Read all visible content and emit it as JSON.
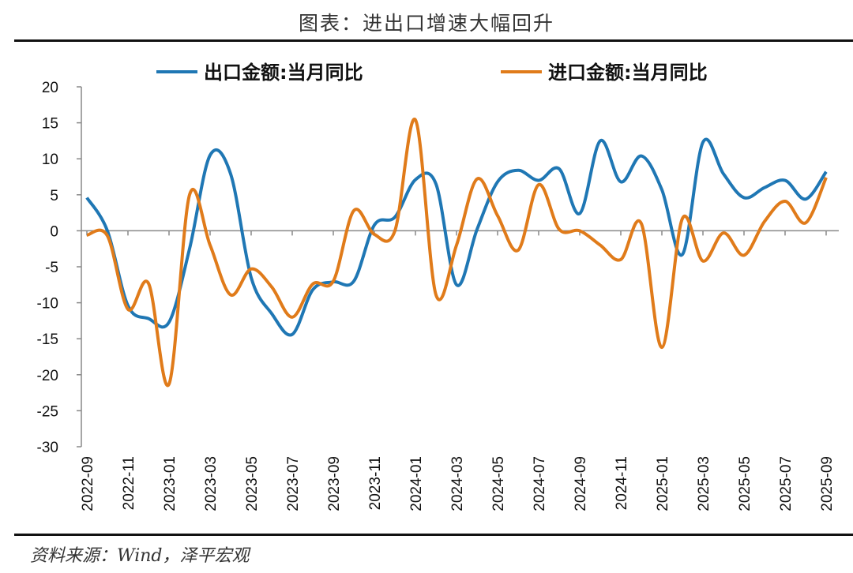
{
  "title": "图表：进出口增速大幅回升",
  "source": "资料来源：Wind，泽平宏观",
  "chart_data": {
    "type": "line",
    "title": "",
    "xlabel": "",
    "ylabel": "",
    "ylim": [
      -30,
      20
    ],
    "yticks": [
      20,
      15,
      10,
      5,
      0,
      -5,
      -10,
      -15,
      -20,
      -25,
      -30
    ],
    "grid": false,
    "legend_position": "top",
    "x": [
      "2022-09",
      "2022-10",
      "2022-11",
      "2022-12",
      "2023-01",
      "2023-02",
      "2023-03",
      "2023-04",
      "2023-05",
      "2023-06",
      "2023-07",
      "2023-08",
      "2023-09",
      "2023-10",
      "2023-11",
      "2023-12",
      "2024-01",
      "2024-02",
      "2024-03",
      "2024-04",
      "2024-05",
      "2024-06",
      "2024-07",
      "2024-08",
      "2024-09",
      "2024-10",
      "2024-11",
      "2024-12",
      "2025-01",
      "2025-02",
      "2025-03",
      "2025-04",
      "2025-05",
      "2025-06",
      "2025-07",
      "2025-08",
      "2025-09"
    ],
    "xtick_labels": [
      "2022-09",
      "2022-11",
      "2023-01",
      "2023-03",
      "2023-05",
      "2023-07",
      "2023-09",
      "2023-11",
      "2024-01",
      "2024-03",
      "2024-05",
      "2024-07",
      "2024-09",
      "2024-11",
      "2025-01",
      "2025-03",
      "2025-05",
      "2025-07",
      "2025-09"
    ],
    "series": [
      {
        "name": "出口金额:当月同比",
        "color": "#1f77b4",
        "values": [
          4.6,
          0.0,
          -10.4,
          -12.2,
          -12.7,
          -2.5,
          10.5,
          7.9,
          -6.5,
          -11.5,
          -14.4,
          -8.2,
          -7.1,
          -7.0,
          0.8,
          1.9,
          7.1,
          6.5,
          -7.5,
          0.2,
          6.8,
          8.4,
          7.0,
          8.6,
          2.4,
          12.5,
          6.8,
          10.4,
          5.7,
          -3.3,
          12.3,
          7.9,
          4.6,
          6.0,
          7.0,
          4.4,
          8.2
        ]
      },
      {
        "name": "进口金额:当月同比",
        "color": "#e07b1a",
        "values": [
          -0.6,
          -0.7,
          -10.9,
          -7.3,
          -21.3,
          5.0,
          -2.0,
          -8.9,
          -5.3,
          -7.8,
          -12.0,
          -7.4,
          -7.0,
          2.8,
          -0.5,
          0.0,
          15.4,
          -8.9,
          -2.0,
          7.2,
          2.1,
          -2.7,
          6.4,
          0.2,
          0.0,
          -2.0,
          -4.0,
          1.0,
          -16.2,
          1.7,
          -4.2,
          -0.3,
          -3.4,
          1.3,
          4.1,
          1.1,
          7.4
        ]
      }
    ]
  }
}
